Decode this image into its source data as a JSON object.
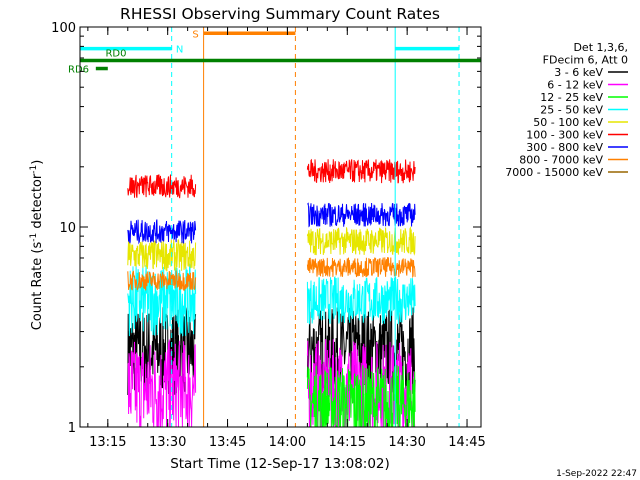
{
  "chart_data": {
    "type": "line",
    "title": "RHESSI Observing Summary Count Rates",
    "xlabel": "Start Time (12-Sep-17 13:08:02)",
    "ylabel_main": "Count Rate (s",
    "ylabel_sup1": "-1",
    "ylabel_mid": " detector",
    "ylabel_sup2": "-1",
    "ylabel_end": ")",
    "y_scale": "log",
    "xlim": [
      "13:08:02",
      "14:48:30"
    ],
    "ylim": [
      1,
      100
    ],
    "x_ticks": [
      "13:15",
      "13:30",
      "13:45",
      "14:00",
      "14:15",
      "14:30",
      "14:45"
    ],
    "y_ticks": [
      "1",
      "10",
      "100"
    ],
    "legend_header": [
      "Det 1,3,6,",
      "FDecim 6, Att 0"
    ],
    "legend_position": "right",
    "series": [
      {
        "name": "3 - 6 keV",
        "color": "#000000",
        "segments": [
          {
            "start": "13:20:00",
            "end": "13:37:00",
            "level": 2.4,
            "noise": 0.22
          },
          {
            "start": "14:05:00",
            "end": "14:32:00",
            "level": 2.4,
            "noise": 0.22
          }
        ]
      },
      {
        "name": "6 - 12 keV",
        "color": "#ff00ff",
        "segments": [
          {
            "start": "13:20:00",
            "end": "13:37:00",
            "level": 1.55,
            "noise": 0.25
          },
          {
            "start": "14:05:00",
            "end": "14:32:00",
            "level": 1.55,
            "noise": 0.25
          }
        ]
      },
      {
        "name": "12 - 25 keV",
        "color": "#00ff00",
        "segments": [
          {
            "start": "14:05:00",
            "end": "14:32:00",
            "level": 1.3,
            "noise": 0.2
          }
        ]
      },
      {
        "name": "25 - 50 keV",
        "color": "#00ffff",
        "segments": [
          {
            "start": "13:20:00",
            "end": "13:37:00",
            "level": 4.3,
            "noise": 0.18
          },
          {
            "start": "14:05:00",
            "end": "14:32:00",
            "level": 4.3,
            "noise": 0.12
          }
        ]
      },
      {
        "name": "50 - 100 keV",
        "color": "#e6e600",
        "segments": [
          {
            "start": "13:20:00",
            "end": "13:37:00",
            "level": 7.2,
            "noise": 0.08
          },
          {
            "start": "14:05:00",
            "end": "14:32:00",
            "level": 8.5,
            "noise": 0.07
          }
        ]
      },
      {
        "name": "100 - 300 keV",
        "color": "#ff0000",
        "segments": [
          {
            "start": "13:20:00",
            "end": "13:37:00",
            "level": 16,
            "noise": 0.06
          },
          {
            "start": "14:05:00",
            "end": "14:32:00",
            "level": 19,
            "noise": 0.06
          }
        ]
      },
      {
        "name": "300 - 800 keV",
        "color": "#0000ff",
        "segments": [
          {
            "start": "13:20:00",
            "end": "13:37:00",
            "level": 9.5,
            "noise": 0.06
          },
          {
            "start": "14:05:00",
            "end": "14:32:00",
            "level": 11.5,
            "noise": 0.06
          }
        ]
      },
      {
        "name": "800 - 7000 keV",
        "color": "#ff8000",
        "segments": [
          {
            "start": "13:20:00",
            "end": "13:37:00",
            "level": 5.4,
            "noise": 0.05
          },
          {
            "start": "14:05:00",
            "end": "14:32:00",
            "level": 6.3,
            "noise": 0.05
          }
        ]
      },
      {
        "name": "7000 - 15000 keV",
        "color": "#996600",
        "segments": []
      }
    ],
    "flags": [
      {
        "label": "N",
        "color": "#00ffff",
        "y": 78,
        "spans": [
          [
            "13:08:02",
            "13:31:00"
          ],
          [
            "14:27:00",
            "14:43:00"
          ]
        ],
        "vlines_solid": [
          "13:08:02",
          "14:27:00"
        ],
        "vlines_dashed": [
          "13:31:00",
          "14:43:00"
        ]
      },
      {
        "label": "S",
        "color": "#ff8000",
        "y": 93,
        "spans": [
          [
            "13:39:00",
            "14:02:00"
          ]
        ],
        "vlines_solid": [
          "13:39:00"
        ],
        "vlines_dashed": [
          "14:02:00"
        ]
      },
      {
        "label": "RD0",
        "color": "#008000",
        "y": 68,
        "spans": [
          [
            "13:08:02",
            "14:48:30"
          ]
        ],
        "vlines_solid": [],
        "vlines_dashed": []
      },
      {
        "label": "RD6",
        "color": "#008000",
        "y": 62,
        "spans": [
          [
            "13:12:00",
            "13:15:00"
          ]
        ],
        "vlines_solid": [],
        "vlines_dashed": []
      }
    ],
    "timestamp": "1-Sep-2022 22:47"
  }
}
